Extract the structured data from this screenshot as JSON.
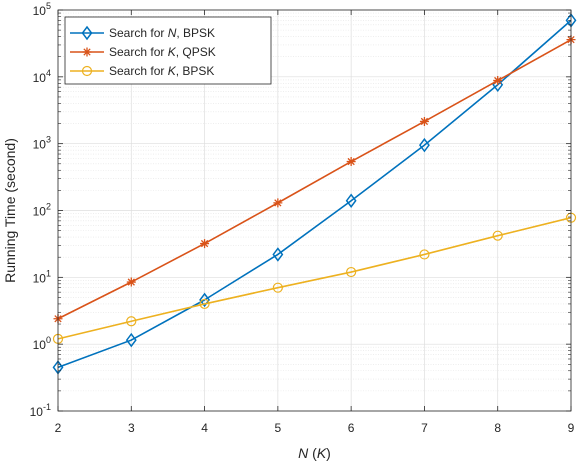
{
  "chart_data": {
    "type": "line",
    "title": "",
    "xlabel": "N (K)",
    "ylabel": "Running Time (second)",
    "x": [
      2,
      3,
      4,
      5,
      6,
      7,
      8,
      9
    ],
    "xlim": [
      2,
      9
    ],
    "ylim": [
      0.1,
      100000
    ],
    "yscale": "log",
    "grid": true,
    "legend_position": "top-left",
    "xticks": [
      "2",
      "3",
      "4",
      "5",
      "6",
      "7",
      "8",
      "9"
    ],
    "yticks": [
      {
        "base": "10",
        "exp": "-1",
        "value": 0.1
      },
      {
        "base": "10",
        "exp": "0",
        "value": 1
      },
      {
        "base": "10",
        "exp": "1",
        "value": 10
      },
      {
        "base": "10",
        "exp": "2",
        "value": 100
      },
      {
        "base": "10",
        "exp": "3",
        "value": 1000
      },
      {
        "base": "10",
        "exp": "4",
        "value": 10000
      },
      {
        "base": "10",
        "exp": "5",
        "value": 100000
      }
    ],
    "series": [
      {
        "name": "Search for N, BPSK",
        "legend_prefix": "Search for ",
        "legend_var": "N",
        "legend_suffix": ", BPSK",
        "color": "#0072BD",
        "marker": "diamond",
        "values": [
          0.45,
          1.15,
          4.6,
          22,
          140,
          950,
          7600,
          70000
        ]
      },
      {
        "name": "Search for K, QPSK",
        "legend_prefix": "Search for ",
        "legend_var": "K",
        "legend_suffix": ", QPSK",
        "color": "#D95319",
        "marker": "asterisk",
        "values": [
          2.4,
          8.5,
          32,
          130,
          540,
          2150,
          8800,
          36000
        ]
      },
      {
        "name": "Search for K, BPSK",
        "legend_prefix": "Search for ",
        "legend_var": "K",
        "legend_suffix": ", BPSK",
        "color": "#EDB120",
        "marker": "circle",
        "values": [
          1.2,
          2.2,
          4.0,
          7.0,
          12,
          22,
          42,
          78
        ]
      }
    ]
  }
}
